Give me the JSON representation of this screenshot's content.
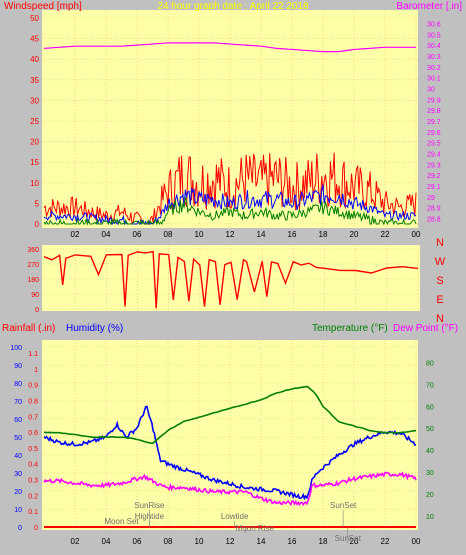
{
  "colors": {
    "plot_bg": "#ffffa8",
    "frame_bg": "#c0c0c0",
    "wind": "#ff0000",
    "wind_avg": "#0000ff",
    "wind_low": "#008000",
    "barometer": "#ff00ff",
    "direction": "#ff0000",
    "humidity": "#0000ff",
    "temperature": "#008000",
    "dew_point": "#ff00ff",
    "rainfall": "#ff0000",
    "title": "#ffff00",
    "grid": "#e8c060"
  },
  "chart_data": [
    {
      "type": "line",
      "title": "24 hour graph date : April 22 2018",
      "ylabel": "Windspeed [mph]",
      "y2label": "Barometer [.in]",
      "x_ticks": [
        "02",
        "04",
        "06",
        "08",
        "10",
        "12",
        "14",
        "16",
        "18",
        "20",
        "22",
        "00"
      ],
      "ylim": [
        0,
        50
      ],
      "y_ticks": [
        "0",
        "5",
        "10",
        "15",
        "20",
        "25",
        "30",
        "35",
        "40",
        "45",
        "50"
      ],
      "y2lim": [
        28.75,
        30.65
      ],
      "y2_ticks": [
        "28.8",
        "28.9",
        "29",
        "29.1",
        "29.2",
        "29.3",
        "29.4",
        "29.5",
        "29.6",
        "29.7",
        "29.8",
        "29.9",
        "30",
        "30.1",
        "30.2",
        "30.3",
        "30.4",
        "30.5",
        "30.6"
      ],
      "grid": true,
      "series": [
        {
          "name": "Windspeed",
          "axis": "left",
          "x": [
            0,
            2,
            4,
            5,
            6,
            6.5,
            7,
            7.5,
            8,
            9,
            10,
            11,
            12,
            13,
            14,
            15,
            16,
            17,
            18,
            19,
            20,
            21,
            22,
            23,
            24
          ],
          "y": [
            4,
            4,
            2,
            3,
            1,
            0,
            1,
            5,
            8,
            12,
            10,
            11,
            9,
            11,
            10,
            11,
            9,
            10,
            12,
            11,
            9,
            8,
            5,
            4,
            5
          ]
        },
        {
          "name": "Wind average",
          "axis": "left",
          "x": [
            0,
            2,
            4,
            5,
            6,
            6.5,
            7,
            7.5,
            8,
            9,
            10,
            11,
            12,
            13,
            14,
            15,
            16,
            17,
            18,
            19,
            20,
            21,
            22,
            23,
            24
          ],
          "y": [
            2,
            2,
            1,
            1,
            0,
            0,
            0,
            2,
            5,
            7,
            6,
            6,
            5,
            6,
            6,
            6,
            5,
            6,
            7,
            7,
            5,
            4,
            2,
            2,
            2
          ]
        },
        {
          "name": "Wind gust low",
          "axis": "left",
          "x": [
            0,
            2,
            4,
            6,
            7.5,
            8,
            9,
            10,
            11,
            12,
            13,
            14,
            15,
            16,
            17,
            18,
            19,
            20,
            21,
            22,
            24
          ],
          "y": [
            0,
            0,
            0,
            0,
            0,
            3,
            5,
            3,
            2,
            3,
            2,
            3,
            2,
            2,
            3,
            4,
            3,
            2,
            1,
            0,
            0
          ]
        },
        {
          "name": "Barometer",
          "axis": "right",
          "x": [
            0,
            1,
            2,
            3,
            4,
            5,
            6,
            7,
            8,
            9,
            10,
            11,
            12,
            13,
            14,
            15,
            16,
            17,
            18,
            19,
            20,
            21,
            22,
            23,
            24
          ],
          "y": [
            30.37,
            30.38,
            30.39,
            30.39,
            30.39,
            30.39,
            30.4,
            30.41,
            30.42,
            30.42,
            30.42,
            30.42,
            30.41,
            30.4,
            30.39,
            30.37,
            30.36,
            30.35,
            30.34,
            30.34,
            30.36,
            30.37,
            30.38,
            30.38,
            30.38
          ]
        }
      ]
    },
    {
      "type": "line",
      "ylim": [
        0,
        360
      ],
      "y_ticks": [
        "0",
        "90",
        "180",
        "270",
        "360"
      ],
      "y2_labels": [
        "N",
        "W",
        "S",
        "E",
        "N"
      ],
      "grid": true,
      "series": [
        {
          "name": "Wind direction",
          "x": [
            0,
            0.5,
            1,
            1.2,
            1.4,
            2,
            3,
            3.5,
            4,
            5,
            5.2,
            5.4,
            6,
            6.5,
            7,
            7.2,
            7.4,
            8,
            8.3,
            8.6,
            9,
            9.3,
            9.6,
            10,
            10.3,
            10.6,
            11,
            11.3,
            11.6,
            12,
            12.4,
            12.8,
            13,
            13.5,
            14,
            14.3,
            14.6,
            15,
            15.5,
            16,
            16.5,
            17,
            17.5,
            18,
            19,
            20,
            21,
            22,
            23,
            24
          ],
          "y": [
            315,
            300,
            320,
            150,
            310,
            320,
            320,
            200,
            330,
            330,
            20,
            330,
            340,
            340,
            340,
            0,
            330,
            320,
            60,
            310,
            280,
            40,
            300,
            270,
            10,
            290,
            280,
            30,
            270,
            280,
            60,
            290,
            280,
            100,
            290,
            70,
            280,
            270,
            160,
            280,
            260,
            280,
            250,
            240,
            235,
            225,
            220,
            240,
            250,
            245
          ]
        }
      ]
    },
    {
      "type": "line",
      "ylabel": "Rainfall (.in)",
      "ylabel2": "Humidity (%)",
      "y2label": "Temperature (°F)",
      "y2label2": "Dew Point (°F)",
      "x_ticks": [
        "02",
        "04",
        "06",
        "08",
        "10",
        "12",
        "14",
        "16",
        "18",
        "20",
        "22",
        "00"
      ],
      "rain_ticks": [
        "0",
        "0.1",
        "0.2",
        "0.3",
        "0.4",
        "0.5",
        "0.6",
        "0.7",
        "0.8",
        "0.9",
        "1",
        "1.1"
      ],
      "humidity_ticks": [
        "0",
        "10",
        "20",
        "30",
        "40",
        "50",
        "60",
        "70",
        "80",
        "90",
        "100"
      ],
      "temp_ticks": [
        "10",
        "20",
        "30",
        "40",
        "50",
        "60",
        "70",
        "80"
      ],
      "temp_lim": [
        5,
        87
      ],
      "grid": true,
      "annotations": [
        "Moon Set",
        "SunRise",
        "Hightide",
        "Lowtide",
        "Moon Rise",
        "SunSet",
        "SunSet"
      ],
      "series": [
        {
          "name": "Humidity",
          "axis": "left",
          "x": [
            0,
            1,
            2,
            3,
            4,
            4.7,
            5.3,
            6,
            6.6,
            7,
            7.5,
            8,
            9,
            10,
            11,
            12,
            13,
            14,
            15,
            16,
            16.5,
            17,
            17.3,
            17.6,
            18,
            19,
            20,
            21,
            22,
            23,
            24
          ],
          "y": [
            50,
            47,
            46,
            47,
            50,
            57,
            50,
            55,
            67,
            56,
            37,
            35,
            32,
            29,
            26,
            24,
            22,
            21,
            20,
            18,
            17,
            17,
            26,
            30,
            33,
            40,
            46,
            50,
            53,
            52,
            46
          ]
        },
        {
          "name": "Temperature",
          "axis": "right",
          "x": [
            0,
            1,
            2,
            3,
            4,
            5,
            6,
            7,
            8,
            9,
            10,
            11,
            12,
            13,
            14,
            15,
            16,
            17,
            17.5,
            18,
            19,
            20,
            21,
            22,
            23,
            24
          ],
          "y": [
            48,
            48,
            47,
            46,
            46,
            46,
            45,
            43,
            49,
            53,
            55,
            57,
            59,
            61,
            63,
            66,
            68,
            69,
            66,
            60,
            53,
            51,
            49,
            48,
            48,
            49
          ]
        },
        {
          "name": "Dew Point",
          "axis": "right",
          "x": [
            0,
            1,
            2,
            3,
            4,
            5,
            6,
            6.5,
            7,
            7.5,
            8,
            9,
            10,
            11,
            12,
            13,
            14,
            15,
            16,
            17,
            17.3,
            18,
            19,
            20,
            21,
            22,
            23,
            24
          ],
          "y": [
            26,
            26,
            25,
            24,
            24,
            25,
            27,
            28,
            26,
            24,
            23,
            23,
            22,
            21,
            21,
            21,
            18,
            16,
            16,
            16,
            24,
            24,
            25,
            27,
            28,
            29,
            29,
            27
          ]
        },
        {
          "name": "Rainfall",
          "axis": "left",
          "x": [
            0,
            24
          ],
          "y": [
            0,
            0
          ]
        }
      ]
    }
  ]
}
